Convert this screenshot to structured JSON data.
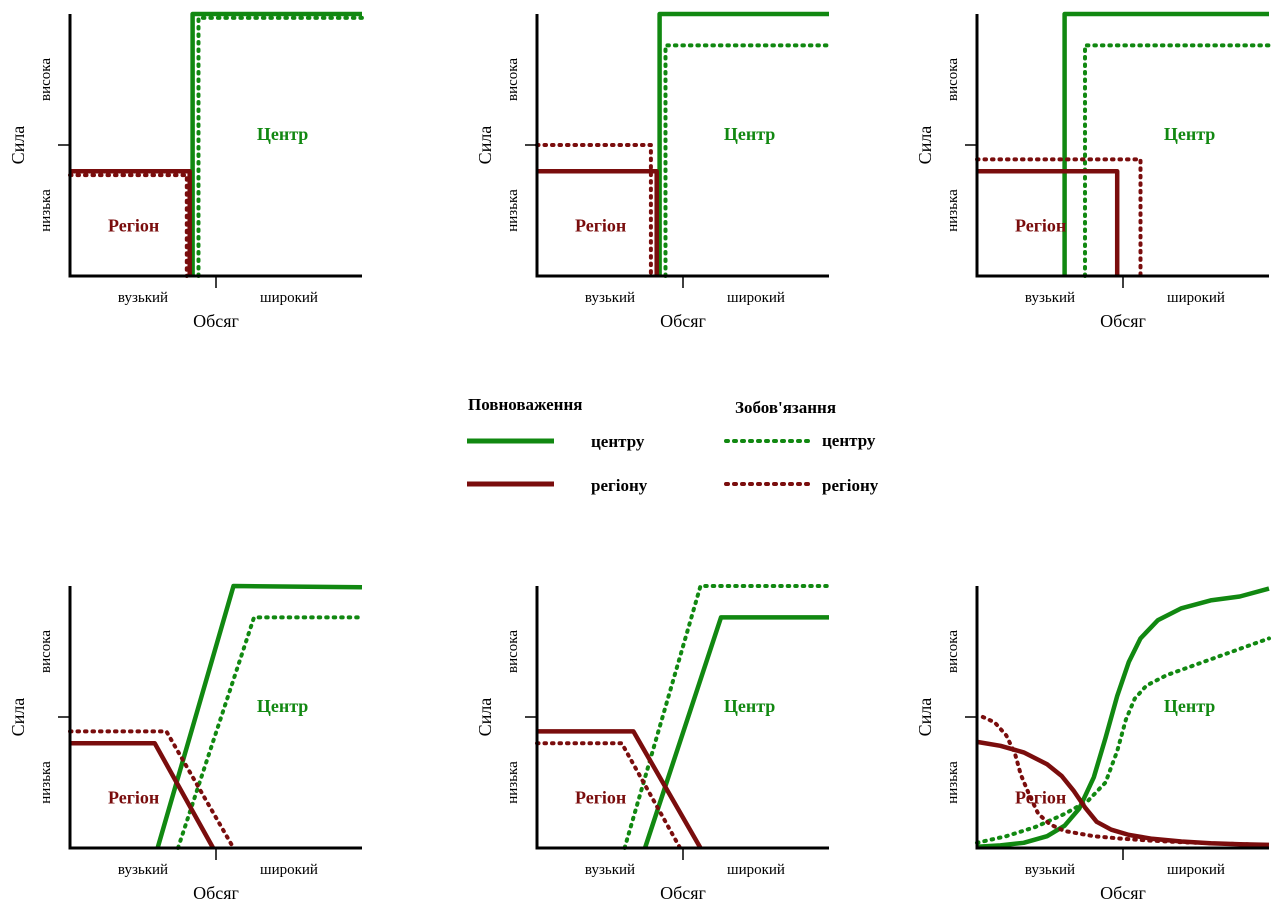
{
  "colors": {
    "center": "#118811",
    "region": "#7a0d0d",
    "axis": "#000000"
  },
  "legend": {
    "authority_title": "Повноваження",
    "obligation_title": "Зобов'язання",
    "center_label": "центру",
    "region_label": "регіону",
    "items": [
      {
        "group": "authority",
        "line": "solid",
        "color": "center",
        "label": "центру"
      },
      {
        "group": "authority",
        "line": "solid",
        "color": "region",
        "label": "регіону"
      },
      {
        "group": "obligation",
        "line": "dotted",
        "color": "center",
        "label": "центру"
      },
      {
        "group": "obligation",
        "line": "dotted",
        "color": "region",
        "label": "регіону"
      }
    ]
  },
  "chart_data": [
    {
      "type": "line",
      "xlabel": "Обсяг",
      "ylabel": "Сила",
      "x_ticks": [
        "вузький",
        "широкий"
      ],
      "y_ticks": [
        "низька",
        "висока"
      ],
      "xlim": [
        0,
        1
      ],
      "ylim": [
        0,
        1
      ],
      "region_label": "Регіон",
      "center_label": "Центр",
      "series": [
        {
          "role": "center-authority",
          "values": [
            [
              0.42,
              0
            ],
            [
              0.42,
              1.0
            ],
            [
              1,
              1.0
            ]
          ]
        },
        {
          "role": "center-obligation",
          "values": [
            [
              0.44,
              0
            ],
            [
              0.44,
              0.985
            ],
            [
              1,
              0.985
            ]
          ]
        },
        {
          "role": "region-authority",
          "values": [
            [
              0,
              0.4
            ],
            [
              0.41,
              0.4
            ],
            [
              0.41,
              0
            ]
          ]
        },
        {
          "role": "region-obligation",
          "values": [
            [
              0,
              0.385
            ],
            [
              0.4,
              0.385
            ],
            [
              0.4,
              0
            ]
          ]
        }
      ]
    },
    {
      "type": "line",
      "xlabel": "Обсяг",
      "ylabel": "Сила",
      "x_ticks": [
        "вузький",
        "широкий"
      ],
      "y_ticks": [
        "низька",
        "висока"
      ],
      "xlim": [
        0,
        1
      ],
      "ylim": [
        0,
        1
      ],
      "region_label": "Регіон",
      "center_label": "Центр",
      "series": [
        {
          "role": "center-authority",
          "values": [
            [
              0.42,
              0
            ],
            [
              0.42,
              1.0
            ],
            [
              1,
              1.0
            ]
          ]
        },
        {
          "role": "center-obligation",
          "values": [
            [
              0.44,
              0
            ],
            [
              0.44,
              0.88
            ],
            [
              1,
              0.88
            ]
          ]
        },
        {
          "role": "region-authority",
          "values": [
            [
              0,
              0.4
            ],
            [
              0.41,
              0.4
            ],
            [
              0.41,
              0
            ]
          ]
        },
        {
          "role": "region-obligation",
          "values": [
            [
              0,
              0.5
            ],
            [
              0.39,
              0.5
            ],
            [
              0.39,
              0
            ]
          ]
        }
      ]
    },
    {
      "type": "line",
      "xlabel": "Обсяг",
      "ylabel": "Сила",
      "x_ticks": [
        "вузький",
        "широкий"
      ],
      "y_ticks": [
        "низька",
        "висока"
      ],
      "xlim": [
        0,
        1
      ],
      "ylim": [
        0,
        1
      ],
      "region_label": "Регіон",
      "center_label": "Центр",
      "series": [
        {
          "role": "center-authority",
          "values": [
            [
              0.3,
              0
            ],
            [
              0.3,
              1.0
            ],
            [
              1,
              1.0
            ]
          ]
        },
        {
          "role": "center-obligation",
          "values": [
            [
              0.37,
              0
            ],
            [
              0.37,
              0.88
            ],
            [
              1,
              0.88
            ]
          ]
        },
        {
          "role": "region-authority",
          "values": [
            [
              0,
              0.4
            ],
            [
              0.48,
              0.4
            ],
            [
              0.48,
              0
            ]
          ]
        },
        {
          "role": "region-obligation",
          "values": [
            [
              0,
              0.445
            ],
            [
              0.56,
              0.445
            ],
            [
              0.56,
              0
            ]
          ]
        }
      ]
    },
    {
      "type": "line",
      "xlabel": "Обсяг",
      "ylabel": "Сила",
      "x_ticks": [
        "вузький",
        "широкий"
      ],
      "y_ticks": [
        "низька",
        "висока"
      ],
      "xlim": [
        0,
        1
      ],
      "ylim": [
        0,
        1
      ],
      "region_label": "Регіон",
      "center_label": "Центр",
      "series": [
        {
          "role": "center-authority",
          "values": [
            [
              0.3,
              0
            ],
            [
              0.56,
              1.0
            ],
            [
              1,
              0.995
            ]
          ]
        },
        {
          "role": "center-obligation",
          "values": [
            [
              0.37,
              0
            ],
            [
              0.63,
              0.88
            ],
            [
              1,
              0.88
            ]
          ]
        },
        {
          "role": "region-authority",
          "values": [
            [
              0,
              0.4
            ],
            [
              0.29,
              0.4
            ],
            [
              0.49,
              0
            ]
          ]
        },
        {
          "role": "region-obligation",
          "values": [
            [
              0,
              0.445
            ],
            [
              0.33,
              0.445
            ],
            [
              0.56,
              0
            ]
          ]
        }
      ]
    },
    {
      "type": "line",
      "xlabel": "Обсяг",
      "ylabel": "Сила",
      "x_ticks": [
        "вузький",
        "широкий"
      ],
      "y_ticks": [
        "низька",
        "висока"
      ],
      "xlim": [
        0,
        1
      ],
      "ylim": [
        0,
        1
      ],
      "region_label": "Регіон",
      "center_label": "Центр",
      "series": [
        {
          "role": "center-authority",
          "values": [
            [
              0.37,
              0
            ],
            [
              0.63,
              0.88
            ],
            [
              1,
              0.88
            ]
          ]
        },
        {
          "role": "center-obligation",
          "values": [
            [
              0.3,
              0
            ],
            [
              0.56,
              1.0
            ],
            [
              1,
              1.0
            ]
          ]
        },
        {
          "role": "region-authority",
          "values": [
            [
              0,
              0.445
            ],
            [
              0.33,
              0.445
            ],
            [
              0.56,
              0
            ]
          ]
        },
        {
          "role": "region-obligation",
          "values": [
            [
              0,
              0.4
            ],
            [
              0.29,
              0.4
            ],
            [
              0.49,
              0
            ]
          ]
        }
      ]
    },
    {
      "type": "line",
      "xlabel": "Обсяг",
      "ylabel": "Сила",
      "x_ticks": [
        "вузький",
        "широкий"
      ],
      "y_ticks": [
        "низька",
        "висока"
      ],
      "xlim": [
        0,
        1
      ],
      "ylim": [
        0,
        1
      ],
      "region_label": "Регіон",
      "center_label": "Центр",
      "series": [
        {
          "role": "center-authority",
          "values": [
            [
              0,
              0.005
            ],
            [
              0.08,
              0.01
            ],
            [
              0.16,
              0.02
            ],
            [
              0.24,
              0.045
            ],
            [
              0.3,
              0.085
            ],
            [
              0.35,
              0.15
            ],
            [
              0.4,
              0.27
            ],
            [
              0.44,
              0.42
            ],
            [
              0.48,
              0.58
            ],
            [
              0.52,
              0.71
            ],
            [
              0.56,
              0.8
            ],
            [
              0.62,
              0.87
            ],
            [
              0.7,
              0.915
            ],
            [
              0.8,
              0.945
            ],
            [
              0.9,
              0.96
            ],
            [
              1,
              0.99
            ]
          ]
        },
        {
          "role": "center-obligation",
          "values": [
            [
              0,
              0.02
            ],
            [
              0.1,
              0.045
            ],
            [
              0.2,
              0.08
            ],
            [
              0.3,
              0.13
            ],
            [
              0.38,
              0.18
            ],
            [
              0.44,
              0.25
            ],
            [
              0.48,
              0.37
            ],
            [
              0.51,
              0.49
            ],
            [
              0.54,
              0.57
            ],
            [
              0.58,
              0.62
            ],
            [
              0.65,
              0.66
            ],
            [
              0.75,
              0.7
            ],
            [
              0.85,
              0.74
            ],
            [
              0.95,
              0.78
            ],
            [
              1,
              0.8
            ]
          ]
        },
        {
          "role": "region-authority",
          "values": [
            [
              0,
              0.405
            ],
            [
              0.08,
              0.39
            ],
            [
              0.16,
              0.365
            ],
            [
              0.24,
              0.32
            ],
            [
              0.29,
              0.275
            ],
            [
              0.33,
              0.22
            ],
            [
              0.37,
              0.155
            ],
            [
              0.41,
              0.1
            ],
            [
              0.46,
              0.07
            ],
            [
              0.52,
              0.05
            ],
            [
              0.6,
              0.035
            ],
            [
              0.7,
              0.025
            ],
            [
              0.8,
              0.018
            ],
            [
              0.9,
              0.014
            ],
            [
              1,
              0.012
            ]
          ]
        },
        {
          "role": "region-obligation",
          "values": [
            [
              0.02,
              0.5
            ],
            [
              0.06,
              0.48
            ],
            [
              0.1,
              0.43
            ],
            [
              0.13,
              0.36
            ],
            [
              0.15,
              0.28
            ],
            [
              0.18,
              0.2
            ],
            [
              0.21,
              0.13
            ],
            [
              0.25,
              0.09
            ],
            [
              0.3,
              0.065
            ],
            [
              0.4,
              0.045
            ],
            [
              0.5,
              0.035
            ],
            [
              0.6,
              0.028
            ],
            [
              0.7,
              0.022
            ],
            [
              0.8,
              0.018
            ],
            [
              0.9,
              0.015
            ],
            [
              1,
              0.012
            ]
          ]
        }
      ]
    }
  ]
}
